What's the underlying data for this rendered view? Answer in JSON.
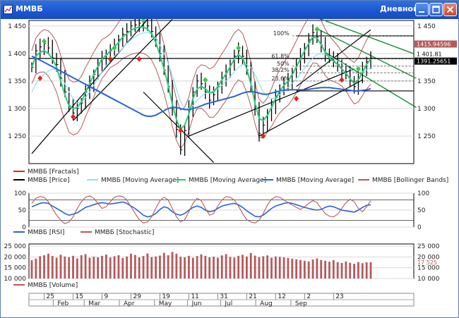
{
  "window": {
    "title": "ММВБ",
    "timeframe": "Дневной",
    "controls": [
      "minimize",
      "maximize",
      "close"
    ]
  },
  "colors": {
    "bars": "#000000",
    "ma_fast": "#2ec97a",
    "ma_slow": "#2a63d6",
    "ma_light": "#8fe0ea",
    "bollinger": "#b55a5a",
    "fractal_up": "#3ec84a",
    "fractal_down": "#e0241c",
    "rsi": "#2a63d6",
    "stochastic": "#b55a5a",
    "volume": "#b55a5a",
    "trend_green": "#1b8a3a",
    "trend_black": "#000000"
  },
  "chart_data": [
    {
      "type": "line",
      "panel": "price",
      "ylim": [
        1200,
        1460
      ],
      "yticks": [
        "1 450",
        "1 400",
        "1 350",
        "1 300",
        "1 250"
      ],
      "ytick_values": [
        1450,
        1400,
        1350,
        1300,
        1250
      ],
      "x_month_labels": [
        "Feb",
        "Mar",
        "Apr",
        "May",
        "Jun",
        "Jul",
        "Aug",
        "Sep"
      ],
      "x_day_labels": [
        "25",
        "15",
        "9",
        "29",
        "19",
        "11",
        "31",
        "21",
        "12",
        "2",
        "23"
      ],
      "price_markers": [
        "1415.94596",
        "1 401.81",
        "1391.25651"
      ],
      "price_marker_values": [
        1415.9,
        1401.8,
        1391.3
      ],
      "fib_levels": [
        {
          "label": "100%",
          "value": 1432
        },
        {
          "label": "61.8%",
          "value": 1390
        },
        {
          "label": "50%",
          "value": 1377
        },
        {
          "label": "38.2%",
          "value": 1365
        },
        {
          "label": "23.6%",
          "value": 1350
        }
      ],
      "horizontal_levels": [
        1432,
        1391,
        1332
      ],
      "close_series": [
        1375,
        1405,
        1412,
        1418,
        1410,
        1392,
        1380,
        1355,
        1330,
        1305,
        1292,
        1300,
        1310,
        1330,
        1345,
        1362,
        1378,
        1390,
        1398,
        1405,
        1412,
        1425,
        1435,
        1440,
        1450,
        1452,
        1455,
        1456,
        1450,
        1440,
        1425,
        1400,
        1370,
        1340,
        1300,
        1262,
        1225,
        1260,
        1300,
        1330,
        1350,
        1345,
        1330,
        1315,
        1325,
        1340,
        1355,
        1365,
        1380,
        1395,
        1405,
        1395,
        1370,
        1340,
        1300,
        1255,
        1270,
        1290,
        1305,
        1320,
        1335,
        1345,
        1350,
        1365,
        1380,
        1395,
        1410,
        1425,
        1438,
        1430,
        1415,
        1400,
        1392,
        1386,
        1380,
        1370,
        1362,
        1350,
        1340,
        1355,
        1370,
        1385,
        1392
      ],
      "series": [
        {
          "name": "ММВБ [Fractals]"
        },
        {
          "name": "ММВБ [Price]"
        },
        {
          "name": "ММВБ [Moving Average]",
          "values": [
            1330,
            1345,
            1355,
            1362,
            1368,
            1372,
            1370,
            1360,
            1345,
            1330,
            1318,
            1310,
            1312,
            1320,
            1330,
            1342,
            1355,
            1367,
            1378,
            1388,
            1395,
            1402,
            1410,
            1418,
            1425,
            1430,
            1435,
            1438,
            1438,
            1435,
            1428,
            1415,
            1400,
            1382,
            1360,
            1335,
            1312,
            1300,
            1300,
            1305,
            1315,
            1322,
            1328,
            1330,
            1332,
            1336,
            1342,
            1350,
            1358,
            1367,
            1375,
            1380,
            1380,
            1375,
            1362,
            1345,
            1330,
            1322,
            1318,
            1320,
            1325,
            1332,
            1338,
            1346,
            1354,
            1363,
            1373,
            1383,
            1392,
            1398,
            1400,
            1398,
            1395,
            1391,
            1387,
            1383,
            1378,
            1372,
            1366,
            1364,
            1366,
            1370,
            1375
          ]
        },
        {
          "name": "ММВБ [Moving Average]",
          "values": [
            1375,
            1395,
            1402,
            1405,
            1400,
            1390,
            1375,
            1350,
            1325,
            1305,
            1300,
            1302,
            1312,
            1330,
            1345,
            1362,
            1377,
            1390,
            1397,
            1405,
            1412,
            1420,
            1430,
            1436,
            1442,
            1446,
            1448,
            1448,
            1444,
            1436,
            1420,
            1398,
            1372,
            1342,
            1308,
            1280,
            1262,
            1270,
            1290,
            1318,
            1336,
            1340,
            1336,
            1328,
            1330,
            1340,
            1352,
            1363,
            1376,
            1390,
            1398,
            1392,
            1372,
            1345,
            1310,
            1282,
            1278,
            1288,
            1302,
            1318,
            1332,
            1342,
            1350,
            1362,
            1376,
            1390,
            1405,
            1418,
            1430,
            1428,
            1416,
            1402,
            1392,
            1386,
            1380,
            1372,
            1364,
            1354,
            1346,
            1352,
            1366,
            1380,
            1390
          ]
        },
        {
          "name": "ММВБ [Moving Average]",
          "values": [
            1395,
            1392,
            1388,
            1384,
            1380,
            1376,
            1372,
            1368,
            1364,
            1360,
            1356,
            1352,
            1348,
            1344,
            1340,
            1336,
            1332,
            1328,
            1324,
            1320,
            1316,
            1312,
            1308,
            1304,
            1300,
            1296,
            1292,
            1288,
            1286,
            1286,
            1288,
            1292,
            1296,
            1300,
            1302,
            1302,
            1300,
            1298,
            1298,
            1300,
            1302,
            1305,
            1308,
            1310,
            1312,
            1314,
            1316,
            1318,
            1320,
            1322,
            1325,
            1328,
            1330,
            1331,
            1330,
            1328,
            1326,
            1326,
            1328,
            1330,
            1332,
            1333,
            1334,
            1334,
            1334,
            1334,
            1334,
            1335,
            1336,
            1337,
            1338,
            1338,
            1338,
            1337,
            1336,
            1335,
            1334,
            1333,
            1332,
            1332,
            1333,
            1334,
            1336
          ]
        },
        {
          "name": "ММВБ [Bollinger Bands]"
        }
      ],
      "fractals_up": [
        [
          3,
          1422
        ],
        [
          20,
          1410
        ],
        [
          27,
          1460
        ],
        [
          42,
          1352
        ],
        [
          50,
          1410
        ],
        [
          69,
          1444
        ],
        [
          79,
          1372
        ]
      ],
      "fractals_down": [
        [
          2,
          1355
        ],
        [
          10,
          1285
        ],
        [
          19,
          1390
        ],
        [
          26,
          1390
        ],
        [
          36,
          1260
        ],
        [
          56,
          1250
        ],
        [
          64,
          1318
        ],
        [
          75,
          1352
        ]
      ]
    },
    {
      "type": "line",
      "panel": "oscillator",
      "ylim": [
        0,
        100
      ],
      "yticks": [
        "100",
        "50",
        "0"
      ],
      "ytick_values": [
        100,
        50,
        0
      ],
      "series": [
        {
          "name": "ММВБ [RSI]",
          "values": [
            60,
            65,
            70,
            72,
            70,
            62,
            55,
            48,
            40,
            35,
            38,
            42,
            50,
            58,
            62,
            66,
            70,
            72,
            70,
            68,
            70,
            72,
            74,
            70,
            62,
            55,
            45,
            35,
            30,
            33,
            40,
            52,
            60,
            56,
            45,
            38,
            35,
            40,
            50,
            58,
            62,
            58,
            50,
            45,
            48,
            55,
            62,
            65,
            68,
            70,
            66,
            58,
            48,
            40,
            32,
            30,
            35,
            45,
            55,
            62,
            66,
            70,
            72,
            70,
            66,
            62,
            58,
            55,
            52,
            50,
            52,
            58,
            62,
            60,
            55,
            50,
            48,
            46,
            44,
            50,
            58,
            64,
            66
          ]
        },
        {
          "name": "ММВБ [Stochastic]",
          "values": [
            70,
            85,
            90,
            88,
            75,
            55,
            35,
            20,
            10,
            15,
            30,
            55,
            75,
            88,
            92,
            85,
            70,
            55,
            60,
            75,
            88,
            92,
            90,
            80,
            60,
            40,
            22,
            12,
            15,
            30,
            55,
            78,
            88,
            80,
            55,
            30,
            15,
            22,
            45,
            70,
            85,
            78,
            55,
            35,
            40,
            62,
            80,
            90,
            88,
            80,
            62,
            40,
            22,
            15,
            12,
            20,
            40,
            65,
            82,
            90,
            88,
            80,
            72,
            65,
            58,
            52,
            60,
            70,
            78,
            72,
            55,
            40,
            32,
            30,
            38,
            55,
            72,
            82,
            75,
            55,
            45,
            60,
            78
          ]
        }
      ]
    },
    {
      "type": "bar",
      "panel": "volume",
      "ylim": [
        10000,
        26000
      ],
      "yticks": [
        "25 000",
        "20 000",
        "15 000",
        "10 000"
      ],
      "ytick_values": [
        25000,
        20000,
        15000,
        10000
      ],
      "last_value_label": "17 525",
      "last_value": 17525,
      "series": [
        {
          "name": "ММВБ [Volume]",
          "values": [
            18500,
            19200,
            20300,
            20800,
            21500,
            20400,
            19600,
            21000,
            20200,
            19800,
            20500,
            19300,
            20800,
            21300,
            19600,
            20100,
            19800,
            20500,
            21100,
            19700,
            20300,
            20800,
            19500,
            20200,
            21500,
            20900,
            19800,
            20400,
            21600,
            19900,
            20200,
            20600,
            21900,
            20800,
            22300,
            21500,
            20100,
            19800,
            20500,
            19600,
            20400,
            21200,
            20500,
            19800,
            20100,
            19600,
            20700,
            21300,
            20000,
            19700,
            20500,
            21000,
            20200,
            21800,
            20600,
            19900,
            20300,
            20700,
            19600,
            20200,
            20000,
            19800,
            19500,
            19200,
            18900,
            18600,
            18200,
            17900,
            18800,
            19300,
            18600,
            18200,
            17800,
            18500,
            17600,
            17200,
            17900,
            17300,
            16800,
            17600,
            17100,
            17500,
            17525
          ]
        }
      ]
    }
  ],
  "legend_price": [
    "ММВБ [Fractals]",
    "ММВБ [Price]",
    "ММВБ [Moving Average]",
    "ММВБ [Moving Average]",
    "ММВБ [Moving Average]",
    "ММВБ [Bollinger Bands]"
  ],
  "legend_osc": [
    "ММВБ [RSI]",
    "ММВБ [Stochastic]"
  ],
  "legend_vol": [
    "ММВБ [Volume]"
  ]
}
